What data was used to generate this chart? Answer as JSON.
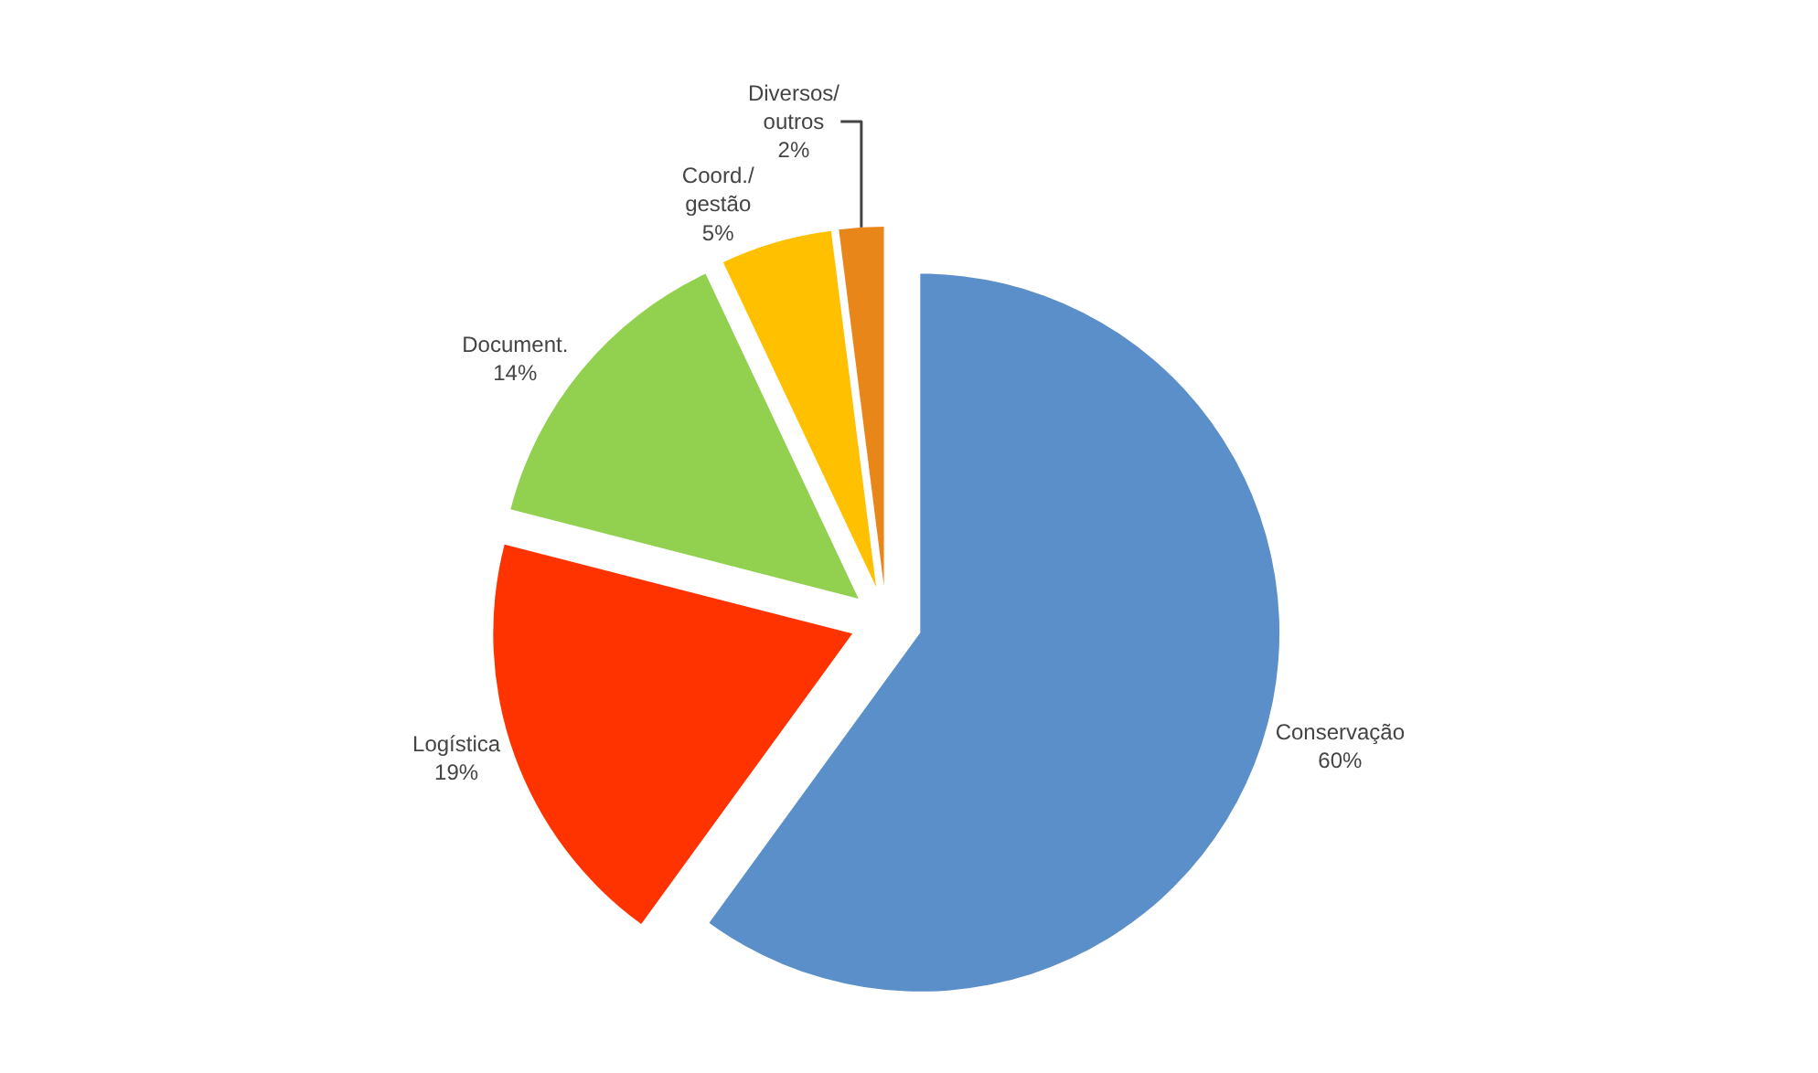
{
  "chart_data": {
    "type": "pie",
    "categories": [
      "Conservação",
      "Logística",
      "Document.",
      "Coord./ gestão",
      "Diversos/ outros"
    ],
    "values": [
      60,
      19,
      14,
      5,
      2
    ],
    "value_labels": [
      "60%",
      "19%",
      "14%",
      "5%",
      "2%"
    ],
    "colors": [
      "#5b8fc9",
      "#ff3300",
      "#92d050",
      "#ffc000",
      "#e8861a"
    ],
    "legend": false
  }
}
